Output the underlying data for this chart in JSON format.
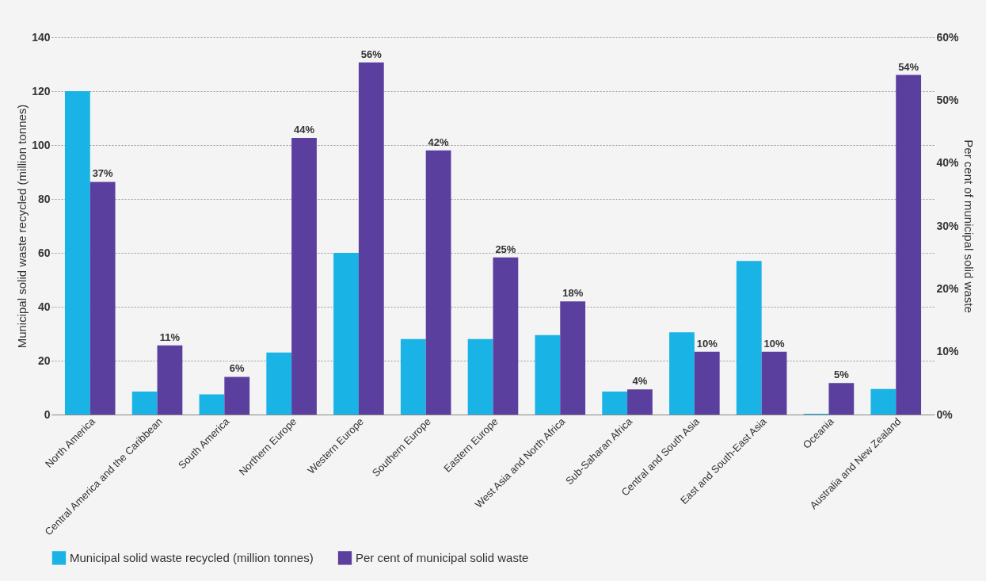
{
  "chart_data": {
    "type": "bar",
    "categories": [
      "North America",
      "Central America and the Caribbean",
      "South America",
      "Northern Europe",
      "Western Europe",
      "Southern Europe",
      "Eastern Europe",
      "West Asia and North Africa",
      "Sub-Saharan Africa",
      "Central and South Asia",
      "East and South-East Asia",
      "Oceania",
      "Australia and New Zealand"
    ],
    "ylabel": "Municipal solid waste recycled (million tonnes)",
    "y2label": "Per cent of municipal solid waste",
    "series": [
      {
        "name": "Municipal solid waste recycled (million tonnes)",
        "color": "#1ab3e6",
        "values": [
          120,
          8.5,
          7.5,
          23,
          60,
          28,
          28,
          29.5,
          8.5,
          30.5,
          57,
          0.3,
          9.5
        ]
      },
      {
        "name": "Per cent of municipal solid waste",
        "color": "#5b3f9e",
        "axis": "y2",
        "values": [
          37,
          11,
          6,
          44,
          56,
          42,
          25,
          18,
          4,
          10,
          10,
          5,
          54
        ],
        "value_labels": [
          "37%",
          "11%",
          "6%",
          "44%",
          "56%",
          "42%",
          "25%",
          "18%",
          "4%",
          "10%",
          "10%",
          "5%",
          "54%"
        ]
      }
    ],
    "ylim": [
      0,
      140
    ],
    "yticks": [
      0,
      20,
      40,
      60,
      80,
      100,
      120,
      140
    ],
    "y2lim": [
      0,
      60
    ],
    "y2ticks": [
      {
        "value": 0,
        "label": "0%"
      },
      {
        "value": 10,
        "label": "10%"
      },
      {
        "value": 20,
        "label": "20%"
      },
      {
        "value": 30,
        "label": "30%"
      },
      {
        "value": 40,
        "label": "40%"
      },
      {
        "value": 50,
        "label": "50%"
      },
      {
        "value": 60,
        "label": "60%"
      }
    ],
    "grid": "y",
    "legend": "bottom"
  }
}
